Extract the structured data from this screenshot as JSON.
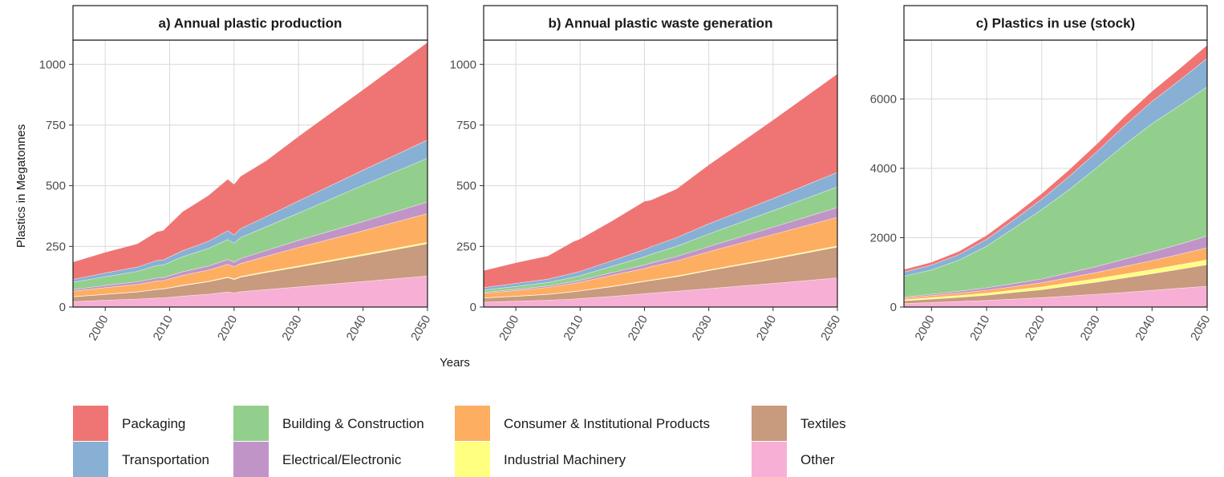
{
  "figure": {
    "ylabel": "Plastics in Megatonnes",
    "xlabel": "Years"
  },
  "colors": {
    "Packaging": "#ef7574",
    "Transportation": "#88b0d4",
    "Building & Construction": "#92cf8c",
    "Electrical/Electronic": "#c194c7",
    "Consumer & Institutional Products": "#fdae61",
    "Industrial Machinery": "#ffff80",
    "Textiles": "#c89a7e",
    "Other": "#f7afd5"
  },
  "legend": {
    "items": [
      "Packaging",
      "Building & Construction",
      "Consumer & Institutional Products",
      "Textiles",
      "Transportation",
      "Electrical/Electronic",
      "Industrial Machinery",
      "Other"
    ]
  },
  "chart_data": [
    {
      "type": "area",
      "stacked": true,
      "title": "a) Annual plastic production",
      "xlim": [
        1995,
        2050
      ],
      "ylim": [
        0,
        1100
      ],
      "xticks": [
        2000,
        2010,
        2020,
        2030,
        2040,
        2050
      ],
      "yticks": [
        0,
        250,
        500,
        750,
        1000
      ],
      "grid": true,
      "x": [
        1995,
        2000,
        2005,
        2008,
        2009,
        2012,
        2016,
        2019,
        2020,
        2021,
        2025,
        2030,
        2040,
        2050
      ],
      "series": [
        {
          "name": "Other",
          "values": [
            22,
            28,
            33,
            37,
            38,
            45,
            53,
            62,
            58,
            63,
            72,
            83,
            105,
            128
          ]
        },
        {
          "name": "Textiles",
          "values": [
            20,
            24,
            29,
            35,
            36,
            43,
            51,
            59,
            55,
            60,
            70,
            82,
            107,
            133
          ]
        },
        {
          "name": "Industrial Machinery",
          "values": [
            1,
            1,
            1,
            1,
            1,
            2,
            2,
            3,
            3,
            3,
            4,
            4,
            5,
            6
          ]
        },
        {
          "name": "Consumer & Institutional Products",
          "values": [
            22,
            27,
            30,
            34,
            34,
            40,
            46,
            52,
            50,
            53,
            63,
            77,
            97,
            118
          ]
        },
        {
          "name": "Electrical/Electronic",
          "values": [
            7,
            9,
            11,
            12,
            12,
            15,
            17,
            20,
            19,
            21,
            24,
            29,
            38,
            48
          ]
        },
        {
          "name": "Building & Construction",
          "values": [
            30,
            36,
            43,
            52,
            52,
            62,
            72,
            82,
            78,
            86,
            98,
            112,
            150,
            180
          ]
        },
        {
          "name": "Transportation",
          "values": [
            12,
            15,
            18,
            21,
            21,
            25,
            30,
            36,
            34,
            37,
            42,
            50,
            62,
            75
          ]
        },
        {
          "name": "Packaging",
          "values": [
            71,
            85,
            95,
            118,
            121,
            160,
            188,
            212,
            208,
            215,
            230,
            266,
            331,
            402
          ]
        }
      ]
    },
    {
      "type": "area",
      "stacked": true,
      "title": "b) Annual plastic waste generation",
      "xlim": [
        1995,
        2050
      ],
      "ylim": [
        0,
        1100
      ],
      "xticks": [
        2000,
        2010,
        2020,
        2030,
        2040,
        2050
      ],
      "yticks": [
        0,
        250,
        500,
        750,
        1000
      ],
      "grid": true,
      "x": [
        1995,
        2000,
        2005,
        2009,
        2010,
        2015,
        2020,
        2021,
        2025,
        2030,
        2040,
        2050
      ],
      "series": [
        {
          "name": "Other",
          "values": [
            20,
            24,
            28,
            33,
            35,
            44,
            55,
            57,
            65,
            76,
            97,
            120
          ]
        },
        {
          "name": "Textiles",
          "values": [
            17,
            20,
            24,
            30,
            31,
            40,
            50,
            52,
            60,
            74,
            100,
            127
          ]
        },
        {
          "name": "Industrial Machinery",
          "values": [
            1,
            1,
            1,
            1,
            1,
            2,
            2,
            2,
            3,
            3,
            4,
            5
          ]
        },
        {
          "name": "Consumer & Institutional Products",
          "values": [
            18,
            23,
            28,
            33,
            35,
            45,
            52,
            55,
            62,
            75,
            98,
            118
          ]
        },
        {
          "name": "Electrical/Electronic",
          "values": [
            4,
            5,
            6,
            8,
            8,
            11,
            14,
            15,
            18,
            21,
            30,
            40
          ]
        },
        {
          "name": "Building & Construction",
          "values": [
            10,
            12,
            14,
            18,
            19,
            26,
            34,
            36,
            42,
            52,
            68,
            85
          ]
        },
        {
          "name": "Transportation",
          "values": [
            10,
            12,
            14,
            17,
            18,
            23,
            30,
            31,
            36,
            42,
            50,
            60
          ]
        },
        {
          "name": "Packaging",
          "values": [
            70,
            85,
            95,
            130,
            133,
            164,
            198,
            192,
            200,
            242,
            323,
            405
          ]
        }
      ]
    },
    {
      "type": "area",
      "stacked": true,
      "title": "c) Plastics in use (stock)",
      "xlim": [
        1995,
        2050
      ],
      "ylim": [
        0,
        7700
      ],
      "xticks": [
        2000,
        2010,
        2020,
        2030,
        2040,
        2050
      ],
      "yticks": [
        0,
        2000,
        4000,
        6000
      ],
      "grid": true,
      "x": [
        1995,
        2000,
        2005,
        2010,
        2015,
        2020,
        2025,
        2030,
        2035,
        2040,
        2045,
        2050
      ],
      "series": [
        {
          "name": "Other",
          "values": [
            100,
            130,
            160,
            190,
            230,
            270,
            320,
            370,
            420,
            480,
            540,
            600
          ]
        },
        {
          "name": "Textiles",
          "values": [
            80,
            100,
            120,
            150,
            190,
            230,
            290,
            350,
            420,
            480,
            550,
            620
          ]
        },
        {
          "name": "Industrial Machinery",
          "values": [
            30,
            40,
            50,
            60,
            70,
            80,
            90,
            100,
            110,
            120,
            130,
            140
          ]
        },
        {
          "name": "Consumer & Institutional Products",
          "values": [
            50,
            60,
            70,
            85,
            100,
            120,
            150,
            180,
            220,
            260,
            300,
            350
          ]
        },
        {
          "name": "Electrical/Electronic",
          "values": [
            30,
            40,
            55,
            70,
            90,
            110,
            140,
            170,
            210,
            250,
            290,
            340
          ]
        },
        {
          "name": "Building & Construction",
          "values": [
            600,
            700,
            900,
            1200,
            1600,
            2000,
            2400,
            2850,
            3300,
            3700,
            4000,
            4300
          ]
        },
        {
          "name": "Transportation",
          "values": [
            120,
            140,
            160,
            200,
            240,
            300,
            380,
            460,
            550,
            640,
            730,
            820
          ]
        },
        {
          "name": "Packaging",
          "values": [
            70,
            80,
            90,
            110,
            130,
            160,
            190,
            220,
            260,
            290,
            330,
            380
          ]
        }
      ]
    }
  ]
}
